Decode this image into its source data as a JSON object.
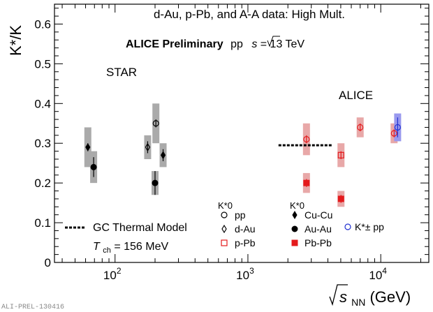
{
  "chart_data": {
    "type": "scatter",
    "title": "d-Au, p-Pb, and A-A data: High Mult.",
    "subtitle": {
      "experiment": "ALICE Preliminary",
      "system": "pp",
      "sqrt": "s",
      "energy": " = 13 TeV"
    },
    "ylabel": "K*/K",
    "xlabel": {
      "sqrt": "s",
      "sub": "NN",
      "unit": " (GeV)"
    },
    "xscale": "log",
    "xlim": [
      35,
      23000
    ],
    "ylim": [
      0,
      0.65
    ],
    "x_ticks": [
      {
        "v": 100,
        "base": "10",
        "exp": "2"
      },
      {
        "v": 1000,
        "base": "10",
        "exp": "3"
      },
      {
        "v": 10000,
        "base": "10",
        "exp": "4"
      }
    ],
    "y_ticks": [
      {
        "v": 0,
        "label": "0"
      },
      {
        "v": 0.1,
        "label": "0.1"
      },
      {
        "v": 0.2,
        "label": "0.2"
      },
      {
        "v": 0.3,
        "label": "0.3"
      },
      {
        "v": 0.4,
        "label": "0.4"
      },
      {
        "v": 0.5,
        "label": "0.5"
      },
      {
        "v": 0.6,
        "label": "0.6"
      }
    ],
    "colors": {
      "star": "#000000",
      "alice": "#e41a1c",
      "alice_pp": "#1f2fd0",
      "box_gray": "#aaaaaa",
      "box_red": "#e8a8a8",
      "box_blue": "#9999ee"
    },
    "labels": {
      "star": "STAR",
      "alice": "ALICE"
    },
    "series": [
      {
        "name": "Cu-Cu",
        "group": "STAR",
        "marker": "diamond-filled",
        "color": "#000000",
        "points": [
          {
            "x": 62.4,
            "y": 0.29,
            "stat": 0.01,
            "syst": 0.05
          },
          {
            "x": 230,
            "y": 0.27,
            "stat": 0.015,
            "syst": 0.03
          }
        ]
      },
      {
        "name": "Au-Au",
        "group": "STAR",
        "marker": "circle-filled",
        "color": "#000000",
        "points": [
          {
            "x": 69,
            "y": 0.24,
            "stat": 0.025,
            "syst": 0.04
          },
          {
            "x": 200,
            "y": 0.2,
            "stat": 0.03,
            "syst": 0.03
          }
        ]
      },
      {
        "name": "d-Au",
        "group": "STAR",
        "marker": "diamond-open",
        "color": "#000000",
        "points": [
          {
            "x": 176,
            "y": 0.29,
            "stat": 0.015,
            "syst": 0.03
          }
        ]
      },
      {
        "name": "pp",
        "group": "STAR",
        "marker": "circle-open",
        "color": "#000000",
        "points": [
          {
            "x": 203,
            "y": 0.35,
            "stat": 0.01,
            "syst": 0.05
          }
        ]
      },
      {
        "name": "pp (ALICE)",
        "group": "ALICE",
        "marker": "circle-open",
        "color": "#e41a1c",
        "points": [
          {
            "x": 2760,
            "y": 0.31,
            "stat": 0.01,
            "syst": 0.04
          },
          {
            "x": 7000,
            "y": 0.34,
            "stat": 0.01,
            "syst": 0.025
          },
          {
            "x": 12600,
            "y": 0.325,
            "stat": 0.01,
            "syst": 0.025
          }
        ]
      },
      {
        "name": "p-Pb",
        "group": "ALICE",
        "marker": "square-open",
        "color": "#e41a1c",
        "points": [
          {
            "x": 5020,
            "y": 0.27,
            "stat": 0.01,
            "syst": 0.03
          }
        ]
      },
      {
        "name": "Pb-Pb",
        "group": "ALICE",
        "marker": "square-filled",
        "color": "#e41a1c",
        "points": [
          {
            "x": 2760,
            "y": 0.2,
            "stat": 0.01,
            "syst": 0.025
          },
          {
            "x": 5020,
            "y": 0.16,
            "stat": 0.01,
            "syst": 0.02
          }
        ]
      },
      {
        "name": "K*± pp",
        "group": "ALICE",
        "marker": "circle-open",
        "color": "#1f2fd0",
        "points": [
          {
            "x": 13400,
            "y": 0.34,
            "stat": 0.025,
            "syst": 0.035
          }
        ]
      }
    ],
    "thermal_model": {
      "label": "GC Thermal Model",
      "value": 0.295,
      "x_range": [
        1700,
        4300
      ],
      "t_symbol": "T",
      "t_sub": "ch",
      "t_value": " = 156 MeV"
    },
    "legend": {
      "k0_title": "K*0",
      "entries_left": [
        {
          "label": "pp",
          "marker": "circle-open",
          "color": "#000000"
        },
        {
          "label": "d-Au",
          "marker": "diamond-open",
          "color": "#000000"
        },
        {
          "label": "p-Pb",
          "marker": "square-open",
          "color": "#e41a1c"
        }
      ],
      "entries_right": [
        {
          "label": "Cu-Cu",
          "marker": "diamond-filled",
          "color": "#000000"
        },
        {
          "label": "Au-Au",
          "marker": "circle-filled",
          "color": "#000000"
        },
        {
          "label": "Pb-Pb",
          "marker": "square-filled",
          "color": "#e41a1c"
        }
      ],
      "kpm_label": "K*± pp"
    },
    "footer": "ALI-PREL-130416"
  }
}
